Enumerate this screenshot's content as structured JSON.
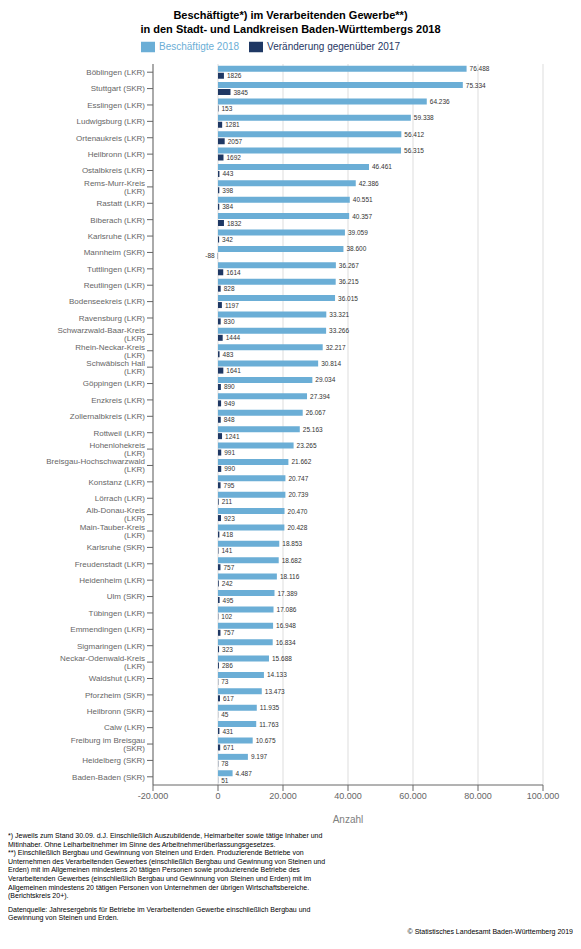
{
  "chart_data": {
    "type": "bar",
    "orientation": "horizontal",
    "title": "Beschäftigte*) im Verarbeitenden Gewerbe**)",
    "subtitle": "in den Stadt- und Landkreisen Baden-Württembergs 2018",
    "xlabel": "Anzahl",
    "categories": [
      "Böblingen (LKR)",
      "Stuttgart (SKR)",
      "Esslingen (LKR)",
      "Ludwigsburg (LKR)",
      "Ortenaukreis (LKR)",
      "Heilbronn (LKR)",
      "Ostalbkreis (LKR)",
      "Rems-Murr-Kreis (LKR)",
      "Rastatt (LKR)",
      "Biberach (LKR)",
      "Karlsruhe (LKR)",
      "Mannheim (SKR)",
      "Tuttlingen (LKR)",
      "Reutlingen (LKR)",
      "Bodenseekreis (LKR)",
      "Ravensburg (LKR)",
      "Schwarzwald-Baar-Kreis (LKR)",
      "Rhein-Neckar-Kreis (LKR)",
      "Schwäbisch Hall (LKR)",
      "Göppingen (LKR)",
      "Enzkreis (LKR)",
      "Zollernalbkreis (LKR)",
      "Rottweil (LKR)",
      "Hohenlohekreis (LKR)",
      "Breisgau-Hochschwarzwald (LKR)",
      "Konstanz (LKR)",
      "Lörrach (LKR)",
      "Alb-Donau-Kreis (LKR)",
      "Main-Tauber-Kreis (LKR)",
      "Karlsruhe (SKR)",
      "Freudenstadt (LKR)",
      "Heidenheim (LKR)",
      "Ulm (SKR)",
      "Tübingen (LKR)",
      "Emmendingen (LKR)",
      "Sigmaringen (LKR)",
      "Neckar-Odenwald-Kreis (LKR)",
      "Waldshut (LKR)",
      "Pforzheim (SKR)",
      "Heilbronn (SKR)",
      "Calw (LKR)",
      "Freiburg im Breisgau (SKR)",
      "Heidelberg (SKR)",
      "Baden-Baden (SKR)"
    ],
    "series": [
      {
        "name": "Beschäftigte 2018",
        "color": "#6baed6",
        "values": [
          76488,
          75334,
          64236,
          59338,
          56412,
          56315,
          46461,
          42386,
          40551,
          40357,
          39059,
          38600,
          36267,
          36215,
          36015,
          33321,
          33266,
          32217,
          30814,
          29034,
          27394,
          26067,
          25163,
          23265,
          21662,
          20747,
          20739,
          20470,
          20428,
          18853,
          18682,
          18116,
          17389,
          17086,
          16948,
          16834,
          15688,
          14133,
          13473,
          11935,
          11763,
          10675,
          9197,
          4487
        ],
        "value_labels": [
          "76.488",
          "75.334",
          "64.236",
          "59.338",
          "56.412",
          "56.315",
          "46.461",
          "42.386",
          "40.551",
          "40.357",
          "39.059",
          "38.600",
          "36.267",
          "36.215",
          "36.015",
          "33.321",
          "33.266",
          "32.217",
          "30.814",
          "29.034",
          "27.394",
          "26.067",
          "25.163",
          "23.265",
          "21.662",
          "20.747",
          "20.739",
          "20.470",
          "20.428",
          "18.853",
          "18.682",
          "18.116",
          "17.389",
          "17.086",
          "16.948",
          "16.834",
          "15.688",
          "14.133",
          "13.473",
          "11.935",
          "11.763",
          "10.675",
          "9.197",
          "4.487"
        ]
      },
      {
        "name": "Veränderung gegenüber 2017",
        "color": "#1f3864",
        "values": [
          1826,
          3845,
          153,
          1281,
          2057,
          1692,
          443,
          398,
          384,
          1832,
          342,
          -88,
          1614,
          828,
          1197,
          830,
          1444,
          483,
          1641,
          890,
          949,
          848,
          1241,
          991,
          990,
          795,
          211,
          923,
          418,
          141,
          757,
          242,
          495,
          102,
          757,
          323,
          286,
          73,
          617,
          45,
          431,
          671,
          78,
          51
        ]
      }
    ],
    "xlim": [
      -20000,
      100000
    ],
    "xticks": [
      {
        "value": -20000,
        "label": "-20.000"
      },
      0,
      {
        "value": 20000,
        "label": "20.000"
      },
      {
        "value": 40000,
        "label": "40.000"
      },
      {
        "value": 60000,
        "label": "60.000"
      },
      {
        "value": 80000,
        "label": "80.000"
      },
      {
        "value": 100000,
        "label": "100.000"
      }
    ],
    "grid": true,
    "legend": "top",
    "data_labels": true,
    "annotations": [
      "*) Jeweils zum Stand 30.09. d.J. Einschließlich Auszubildende, Heimarbeiter sowie tätige Inhaber und\nMitinhaber. Ohne Leiharbeitnehmer im Sinne des Arbeitnehmerüberlassungsgesetzes.\n**) Einschließlich Bergbau und Gewinnung von Steinen und Erden. Produzierende Betriebe von\nUnternehmen des Verarbeitenden Gewerbes (einschließlich Bergbau und Gewinnung von Steinen und\nErden) mit im Allgemeinen mindestens 20 tätigen Personen sowie produzierende Betriebe des\nVerarbeitenden Gewerbes (einschließlich Bergbau und Gewinnung von Steinen und Erden) mit im\nAllgemeinen mindestens 20 tätigen Personen von Unternehmen der übrigen Wirtschaftsbereiche.\n(Berichtskreis 20+).",
      "Datenquelle: Jahresergebnis für Betriebe im Verarbeitenden Gewerbe einschließlich Bergbau und\nGewinnung von Steinen und Erden.",
      "© Statistisches Landesamt Baden-Württemberg 2019"
    ]
  }
}
